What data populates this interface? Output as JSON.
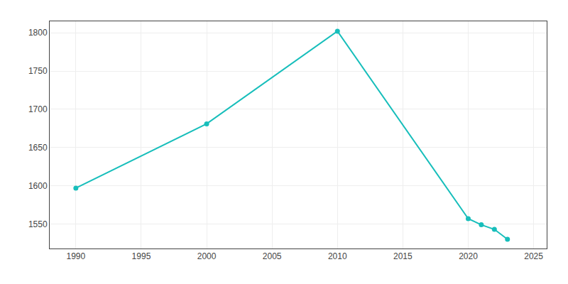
{
  "chart_data": {
    "type": "line",
    "x": [
      1990,
      2000,
      2010,
      2020,
      2021,
      2022,
      2023
    ],
    "values": [
      1597,
      1681,
      1802,
      1557,
      1549,
      1543,
      1530
    ],
    "color": "#17bebb",
    "marker": "circle",
    "line_style": "solid",
    "xlim": [
      1988,
      2026
    ],
    "ylim": [
      1518,
      1815
    ],
    "xticks": [
      1990,
      1995,
      2000,
      2005,
      2010,
      2015,
      2020,
      2025
    ],
    "yticks": [
      1550,
      1600,
      1650,
      1700,
      1750,
      1800
    ],
    "grid": true
  }
}
